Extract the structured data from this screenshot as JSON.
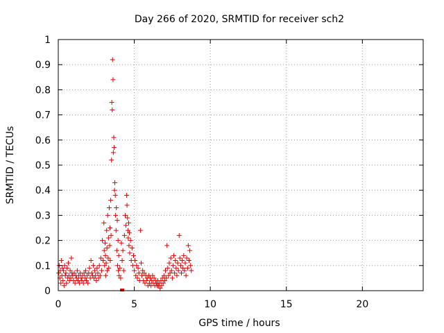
{
  "chart_data": {
    "type": "scatter",
    "title": "Day 266 of 2020, SRMTID for receiver sch2",
    "xlabel": "GPS time / hours",
    "ylabel": "SRMTID / TECUs",
    "xlim": [
      0,
      24
    ],
    "ylim": [
      0,
      1
    ],
    "grid": true,
    "marker": "+",
    "x_ticks": [
      0,
      5,
      10,
      15,
      20
    ],
    "x_tick_labels": [
      "0",
      "5",
      "10",
      "15",
      "20"
    ],
    "y_ticks": [
      0,
      0.1,
      0.2,
      0.3,
      0.4,
      0.5,
      0.6,
      0.7,
      0.8,
      0.9,
      1
    ],
    "y_tick_labels": [
      "0",
      "0.1",
      "0.2",
      "0.3",
      "0.4",
      "0.5",
      "0.6",
      "0.7",
      "0.8",
      "0.9",
      "1"
    ],
    "series": [
      {
        "name": "SRMTID",
        "color": "#e00000",
        "points": [
          [
            0.03,
            0.07
          ],
          [
            0.06,
            0.1
          ],
          [
            0.1,
            0.05
          ],
          [
            0.13,
            0.08
          ],
          [
            0.17,
            0.03
          ],
          [
            0.2,
            0.12
          ],
          [
            0.24,
            0.06
          ],
          [
            0.27,
            0.09
          ],
          [
            0.31,
            0.04
          ],
          [
            0.34,
            0.08
          ],
          [
            0.38,
            0.02
          ],
          [
            0.42,
            0.1
          ],
          [
            0.46,
            0.06
          ],
          [
            0.5,
            0.07
          ],
          [
            0.54,
            0.03
          ],
          [
            0.58,
            0.09
          ],
          [
            0.62,
            0.05
          ],
          [
            0.66,
            0.11
          ],
          [
            0.7,
            0.06
          ],
          [
            0.74,
            0.04
          ],
          [
            0.78,
            0.08
          ],
          [
            0.82,
            0.05
          ],
          [
            0.86,
            0.13
          ],
          [
            0.9,
            0.07
          ],
          [
            0.95,
            0.06
          ],
          [
            1.0,
            0.04
          ],
          [
            1.05,
            0.07
          ],
          [
            1.1,
            0.03
          ],
          [
            1.15,
            0.06
          ],
          [
            1.2,
            0.05
          ],
          [
            1.25,
            0.08
          ],
          [
            1.3,
            0.04
          ],
          [
            1.35,
            0.06
          ],
          [
            1.4,
            0.03
          ],
          [
            1.45,
            0.07
          ],
          [
            1.5,
            0.05
          ],
          [
            1.55,
            0.04
          ],
          [
            1.6,
            0.06
          ],
          [
            1.65,
            0.03
          ],
          [
            1.7,
            0.07
          ],
          [
            1.75,
            0.05
          ],
          [
            1.8,
            0.08
          ],
          [
            1.85,
            0.04
          ],
          [
            1.9,
            0.06
          ],
          [
            1.95,
            0.03
          ],
          [
            2.0,
            0.07
          ],
          [
            2.05,
            0.09
          ],
          [
            2.1,
            0.05
          ],
          [
            2.15,
            0.12
          ],
          [
            2.2,
            0.07
          ],
          [
            2.25,
            0.06
          ],
          [
            2.3,
            0.1
          ],
          [
            2.35,
            0.05
          ],
          [
            2.4,
            0.08
          ],
          [
            2.45,
            0.06
          ],
          [
            2.5,
            0.04
          ],
          [
            2.55,
            0.09
          ],
          [
            2.6,
            0.07
          ],
          [
            2.65,
            0.05
          ],
          [
            2.7,
            0.1
          ],
          [
            2.75,
            0.06
          ],
          [
            2.8,
            0.13
          ],
          [
            2.85,
            0.08
          ],
          [
            2.9,
            0.2
          ],
          [
            2.95,
            0.12
          ],
          [
            3.0,
            0.27
          ],
          [
            3.02,
            0.16
          ],
          [
            3.05,
            0.1
          ],
          [
            3.08,
            0.19
          ],
          [
            3.1,
            0.14
          ],
          [
            3.12,
            0.06
          ],
          [
            3.15,
            0.11
          ],
          [
            3.18,
            0.24
          ],
          [
            3.2,
            0.17
          ],
          [
            3.22,
            0.08
          ],
          [
            3.25,
            0.3
          ],
          [
            3.28,
            0.13
          ],
          [
            3.3,
            0.21
          ],
          [
            3.32,
            0.09
          ],
          [
            3.35,
            0.33
          ],
          [
            3.38,
            0.18
          ],
          [
            3.4,
            0.25
          ],
          [
            3.42,
            0.12
          ],
          [
            3.45,
            0.36
          ],
          [
            3.47,
            0.22
          ],
          [
            3.5,
            0.52
          ],
          [
            3.52,
            0.75
          ],
          [
            3.55,
            0.72
          ],
          [
            3.57,
            0.92
          ],
          [
            3.6,
            0.84
          ],
          [
            3.62,
            0.55
          ],
          [
            3.65,
            0.61
          ],
          [
            3.67,
            0.57
          ],
          [
            3.7,
            0.4
          ],
          [
            3.72,
            0.43
          ],
          [
            3.75,
            0.38
          ],
          [
            3.77,
            0.3
          ],
          [
            3.8,
            0.24
          ],
          [
            3.82,
            0.33
          ],
          [
            3.85,
            0.16
          ],
          [
            3.88,
            0.28
          ],
          [
            3.9,
            0.1
          ],
          [
            3.93,
            0.2
          ],
          [
            3.95,
            0.08
          ],
          [
            3.98,
            0.14
          ],
          [
            4.0,
            0.06
          ],
          [
            4.05,
            0.09
          ],
          [
            4.1,
            0.05
          ],
          [
            4.15,
            0.19
          ],
          [
            4.2,
            0.12
          ],
          [
            4.25,
            0.16
          ],
          [
            4.3,
            0.08
          ],
          [
            4.35,
            0.22
          ],
          [
            4.4,
            0.3
          ],
          [
            4.45,
            0.26
          ],
          [
            4.5,
            0.38
          ],
          [
            4.52,
            0.34
          ],
          [
            4.55,
            0.29
          ],
          [
            4.58,
            0.24
          ],
          [
            4.6,
            0.21
          ],
          [
            4.63,
            0.27
          ],
          [
            4.65,
            0.18
          ],
          [
            4.68,
            0.23
          ],
          [
            4.7,
            0.15
          ],
          [
            4.75,
            0.2
          ],
          [
            4.8,
            0.12
          ],
          [
            4.85,
            0.17
          ],
          [
            4.9,
            0.1
          ],
          [
            4.95,
            0.14
          ],
          [
            5.0,
            0.08
          ],
          [
            5.05,
            0.12
          ],
          [
            5.1,
            0.06
          ],
          [
            5.15,
            0.1
          ],
          [
            5.2,
            0.05
          ],
          [
            5.25,
            0.09
          ],
          [
            5.3,
            0.07
          ],
          [
            5.35,
            0.04
          ],
          [
            5.4,
            0.24
          ],
          [
            5.45,
            0.11
          ],
          [
            5.5,
            0.06
          ],
          [
            5.55,
            0.08
          ],
          [
            5.6,
            0.04
          ],
          [
            5.65,
            0.07
          ],
          [
            5.7,
            0.03
          ],
          [
            5.75,
            0.06
          ],
          [
            5.8,
            0.04
          ],
          [
            5.85,
            0.05
          ],
          [
            5.9,
            0.02
          ],
          [
            5.95,
            0.06
          ],
          [
            6.0,
            0.03
          ],
          [
            6.05,
            0.05
          ],
          [
            6.1,
            0.02
          ],
          [
            6.15,
            0.04
          ],
          [
            6.2,
            0.06
          ],
          [
            6.25,
            0.03
          ],
          [
            6.3,
            0.05
          ],
          [
            6.35,
            0.02
          ],
          [
            6.4,
            0.04
          ],
          [
            6.45,
            0.03
          ],
          [
            6.5,
            0.02
          ],
          [
            6.55,
            0.04
          ],
          [
            6.6,
            0.02
          ],
          [
            6.65,
            0.03
          ],
          [
            6.7,
            0.01
          ],
          [
            6.75,
            0.04
          ],
          [
            6.8,
            0.02
          ],
          [
            6.85,
            0.05
          ],
          [
            6.9,
            0.03
          ],
          [
            6.95,
            0.06
          ],
          [
            7.0,
            0.04
          ],
          [
            7.05,
            0.08
          ],
          [
            7.1,
            0.05
          ],
          [
            7.15,
            0.18
          ],
          [
            7.2,
            0.09
          ],
          [
            7.25,
            0.06
          ],
          [
            7.3,
            0.11
          ],
          [
            7.35,
            0.07
          ],
          [
            7.4,
            0.13
          ],
          [
            7.45,
            0.08
          ],
          [
            7.5,
            0.05
          ],
          [
            7.55,
            0.1
          ],
          [
            7.6,
            0.14
          ],
          [
            7.65,
            0.07
          ],
          [
            7.7,
            0.12
          ],
          [
            7.75,
            0.09
          ],
          [
            7.8,
            0.06
          ],
          [
            7.85,
            0.11
          ],
          [
            7.9,
            0.08
          ],
          [
            7.95,
            0.22
          ],
          [
            8.0,
            0.13
          ],
          [
            8.05,
            0.1
          ],
          [
            8.1,
            0.07
          ],
          [
            8.15,
            0.12
          ],
          [
            8.2,
            0.09
          ],
          [
            8.25,
            0.14
          ],
          [
            8.3,
            0.08
          ],
          [
            8.35,
            0.11
          ],
          [
            8.4,
            0.06
          ],
          [
            8.45,
            0.13
          ],
          [
            8.5,
            0.09
          ],
          [
            8.55,
            0.18
          ],
          [
            8.6,
            0.12
          ],
          [
            8.65,
            0.16
          ],
          [
            8.7,
            0.1
          ],
          [
            8.75,
            0.08
          ]
        ]
      }
    ]
  }
}
